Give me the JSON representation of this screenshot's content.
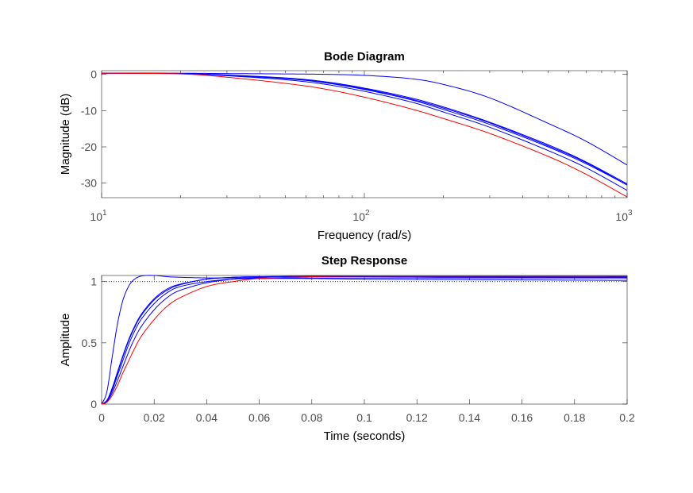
{
  "chart_data": [
    {
      "type": "line",
      "title": "Bode Diagram",
      "xlabel": "Frequency  (rad/s)",
      "ylabel": "Magnitude (dB)",
      "xscale": "log",
      "xlim": [
        10,
        1000
      ],
      "ylim": [
        -34,
        1
      ],
      "grid": false,
      "x_ticks": [
        {
          "base": "10",
          "exp": "1"
        },
        {
          "base": "10",
          "exp": "2"
        },
        {
          "base": "10",
          "exp": "3"
        }
      ],
      "y_ticks": [
        "0",
        "-10",
        "-20",
        "-30"
      ],
      "y_tick_values": [
        0,
        -10,
        -20,
        -30
      ],
      "x": [
        10,
        20,
        30,
        50,
        70,
        100,
        150,
        200,
        300,
        500,
        700,
        1000
      ],
      "series": [
        {
          "color": "#0000ff",
          "values": [
            0.3,
            0.3,
            0.2,
            0.1,
            0.0,
            -0.3,
            -1.2,
            -2.8,
            -6.5,
            -13.5,
            -18.5,
            -25.0
          ]
        },
        {
          "color": "#0000ff",
          "values": [
            0.3,
            0.2,
            -0.3,
            -1.2,
            -2.3,
            -4.2,
            -7.0,
            -9.7,
            -13.8,
            -20.0,
            -24.7,
            -30.5
          ]
        },
        {
          "color": "#0000ff",
          "values": [
            0.3,
            0.2,
            -0.3,
            -1.1,
            -2.2,
            -4.0,
            -6.8,
            -9.3,
            -13.4,
            -19.7,
            -24.4,
            -30.5
          ]
        },
        {
          "color": "#0000ff",
          "values": [
            0.3,
            0.2,
            -0.2,
            -1.0,
            -2.0,
            -3.8,
            -6.5,
            -9.0,
            -13.2,
            -19.4,
            -24.2,
            -30.2
          ]
        },
        {
          "color": "#0000ff",
          "values": [
            0.3,
            0.2,
            -0.4,
            -1.5,
            -2.7,
            -4.7,
            -7.6,
            -10.4,
            -14.6,
            -21.0,
            -25.8,
            -32.0
          ]
        },
        {
          "color": "#ff0000",
          "values": [
            0.3,
            0.1,
            -0.8,
            -2.5,
            -4.0,
            -6.3,
            -9.5,
            -12.2,
            -16.3,
            -22.6,
            -27.6,
            -33.8
          ]
        }
      ]
    },
    {
      "type": "line",
      "title": "Step Response",
      "xlabel": "Time (seconds)",
      "ylabel": "Amplitude",
      "xlim": [
        0,
        0.2
      ],
      "ylim": [
        0,
        1.05
      ],
      "grid": false,
      "reference_line": {
        "value": 1,
        "style": "dotted",
        "color": "#000000"
      },
      "x_ticks": [
        "0",
        "0.02",
        "0.04",
        "0.06",
        "0.08",
        "0.1",
        "0.12",
        "0.14",
        "0.16",
        "0.18",
        "0.2"
      ],
      "x_tick_values": [
        0,
        0.02,
        0.04,
        0.06,
        0.08,
        0.1,
        0.12,
        0.14,
        0.16,
        0.18,
        0.2
      ],
      "y_ticks": [
        "0",
        "0.5",
        "1"
      ],
      "y_tick_values": [
        0,
        0.5,
        1
      ],
      "x": [
        0,
        0.002,
        0.004,
        0.006,
        0.008,
        0.01,
        0.012,
        0.015,
        0.02,
        0.025,
        0.03,
        0.04,
        0.05,
        0.06,
        0.08,
        0.1,
        0.15,
        0.2
      ],
      "series": [
        {
          "color": "#0000ff",
          "values": [
            0,
            0.1,
            0.38,
            0.65,
            0.84,
            0.95,
            1.01,
            1.045,
            1.05,
            1.04,
            1.035,
            1.03,
            1.03,
            1.03,
            1.03,
            1.03,
            1.03,
            1.03
          ]
        },
        {
          "color": "#0000ff",
          "values": [
            0,
            0.03,
            0.12,
            0.25,
            0.38,
            0.5,
            0.6,
            0.72,
            0.85,
            0.93,
            0.975,
            1.02,
            1.035,
            1.04,
            1.04,
            1.04,
            1.035,
            1.03
          ]
        },
        {
          "color": "#0000ff",
          "values": [
            0,
            0.03,
            0.13,
            0.26,
            0.39,
            0.51,
            0.61,
            0.73,
            0.86,
            0.94,
            0.98,
            1.02,
            1.035,
            1.04,
            1.045,
            1.045,
            1.04,
            1.035
          ]
        },
        {
          "color": "#0000ff",
          "values": [
            0,
            0.025,
            0.11,
            0.23,
            0.35,
            0.47,
            0.57,
            0.69,
            0.82,
            0.91,
            0.96,
            1.0,
            1.02,
            1.025,
            1.025,
            1.02,
            1.015,
            1.01
          ]
        },
        {
          "color": "#0000ff",
          "values": [
            0,
            0.02,
            0.09,
            0.19,
            0.3,
            0.41,
            0.51,
            0.63,
            0.77,
            0.87,
            0.93,
            0.99,
            1.02,
            1.035,
            1.045,
            1.045,
            1.04,
            1.04
          ]
        },
        {
          "color": "#ff0000",
          "values": [
            0,
            0.015,
            0.07,
            0.15,
            0.25,
            0.34,
            0.43,
            0.55,
            0.69,
            0.8,
            0.87,
            0.96,
            1.0,
            1.025,
            1.04,
            1.045,
            1.045,
            1.045
          ]
        }
      ]
    }
  ]
}
